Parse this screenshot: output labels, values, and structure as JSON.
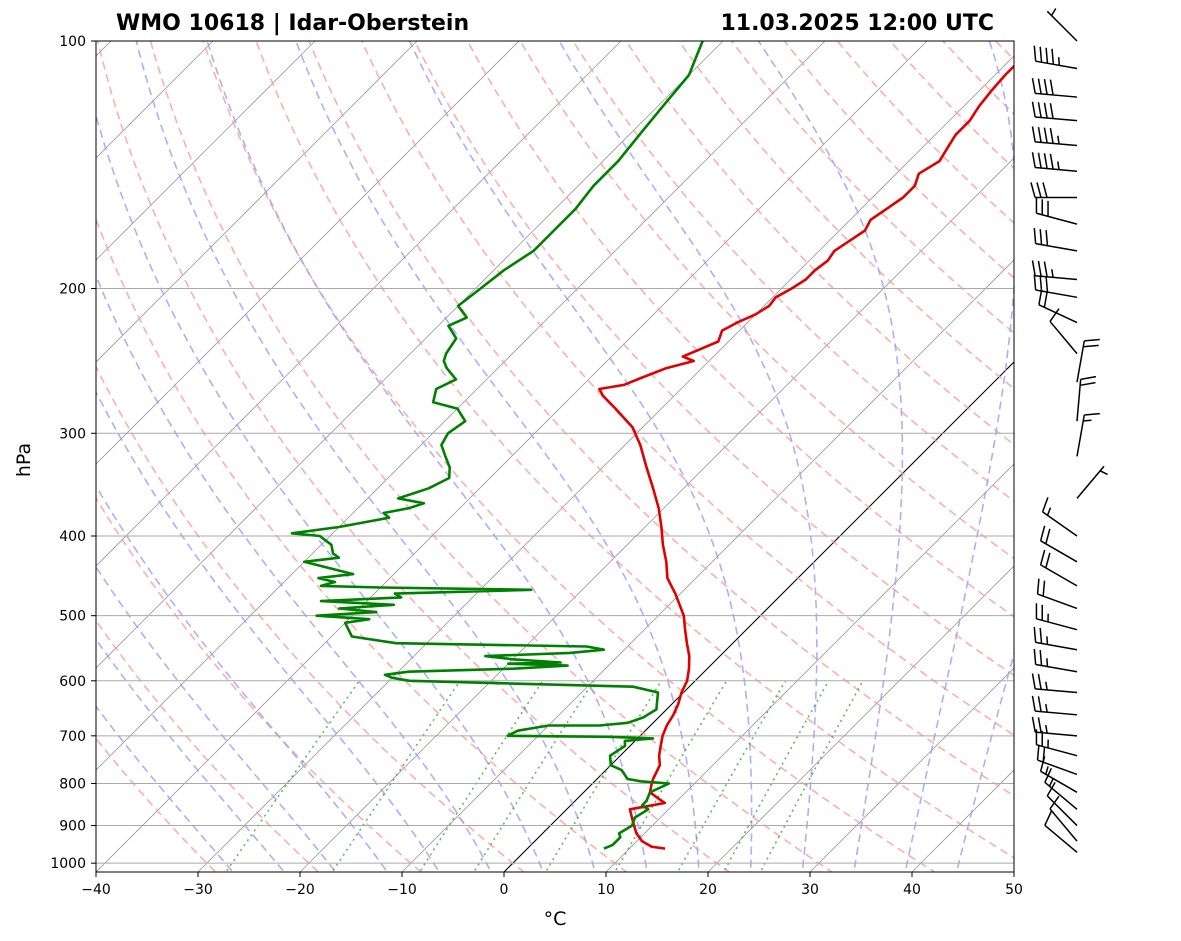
{
  "chart_data": {
    "type": "line",
    "title_left": "WMO 10618 | Idar-Oberstein",
    "title_right": "11.03.2025 12:00 UTC",
    "xlabel": "°C",
    "ylabel": "hPa",
    "xlim": [
      -40,
      50
    ],
    "ylim": [
      1025,
      100
    ],
    "log_pressure_axis": true,
    "skew_degrees": 45,
    "grid": true,
    "x_ticks": [
      "−40",
      "−30",
      "−20",
      "−10",
      "0",
      "10",
      "20",
      "30",
      "40",
      "50"
    ],
    "y_ticks": [
      "100",
      "200",
      "300",
      "400",
      "500",
      "600",
      "700",
      "800",
      "900",
      "1000"
    ],
    "background_lines": {
      "dry_adiabats": "red-dashed",
      "moist_adiabats": "blue-dashed",
      "mixing_ratio": "green-dotted",
      "isotherms": "gray-solid",
      "zero_isotherm": "black-solid"
    },
    "series": [
      {
        "color": "#e00000",
        "points": [
          [
            13.5,
            960
          ],
          [
            12.0,
            955
          ],
          [
            10.5,
            940
          ],
          [
            9.2,
            920
          ],
          [
            8.2,
            900
          ],
          [
            7.2,
            880
          ],
          [
            6.2,
            860
          ],
          [
            9.0,
            845
          ],
          [
            8.0,
            835
          ],
          [
            6.5,
            820
          ],
          [
            5.8,
            800
          ],
          [
            5.5,
            790
          ],
          [
            4.8,
            760
          ],
          [
            3.8,
            740
          ],
          [
            3.0,
            720
          ],
          [
            2.2,
            700
          ],
          [
            1.6,
            680
          ],
          [
            1.2,
            660
          ],
          [
            0.6,
            640
          ],
          [
            -0.2,
            620
          ],
          [
            -0.8,
            600
          ],
          [
            -1.8,
            580
          ],
          [
            -3.0,
            560
          ],
          [
            -4.5,
            540
          ],
          [
            -6.0,
            520
          ],
          [
            -7.5,
            500
          ],
          [
            -10.5,
            470
          ],
          [
            -12.8,
            450
          ],
          [
            -14.5,
            430
          ],
          [
            -16.5,
            410
          ],
          [
            -18.4,
            390
          ],
          [
            -20.5,
            370
          ],
          [
            -23.0,
            350
          ],
          [
            -25.7,
            330
          ],
          [
            -28.5,
            310
          ],
          [
            -31.0,
            295
          ],
          [
            -34.5,
            280
          ],
          [
            -37.0,
            270
          ],
          [
            -38.0,
            265
          ],
          [
            -36.0,
            262
          ],
          [
            -35.0,
            257
          ],
          [
            -33.5,
            250
          ],
          [
            -31.5,
            245
          ],
          [
            -33.0,
            242
          ],
          [
            -32.0,
            237
          ],
          [
            -31.0,
            232
          ],
          [
            -31.7,
            225
          ],
          [
            -31.0,
            220
          ],
          [
            -30.0,
            215
          ],
          [
            -29.5,
            210
          ],
          [
            -29.7,
            205
          ],
          [
            -29.0,
            200
          ],
          [
            -28.5,
            195
          ],
          [
            -28.5,
            190
          ],
          [
            -28.2,
            185
          ],
          [
            -28.5,
            180
          ],
          [
            -28.0,
            175
          ],
          [
            -27.5,
            170
          ],
          [
            -28.0,
            165
          ],
          [
            -27.5,
            160
          ],
          [
            -27.0,
            155
          ],
          [
            -27.0,
            150
          ],
          [
            -27.8,
            145
          ],
          [
            -27.0,
            140
          ],
          [
            -27.5,
            135
          ],
          [
            -28.0,
            130
          ],
          [
            -28.0,
            125
          ],
          [
            -28.5,
            120
          ],
          [
            -28.8,
            115
          ],
          [
            -29.0,
            110
          ],
          [
            -29.0,
            105
          ],
          [
            -29.0,
            100
          ]
        ]
      },
      {
        "color": "#008000",
        "points": [
          [
            7.5,
            960
          ],
          [
            8.0,
            950
          ],
          [
            8.0,
            930
          ],
          [
            7.5,
            920
          ],
          [
            8.0,
            900
          ],
          [
            7.5,
            880
          ],
          [
            8.0,
            860
          ],
          [
            7.0,
            850
          ],
          [
            7.0,
            840
          ],
          [
            6.5,
            820
          ],
          [
            7.5,
            800
          ],
          [
            4.5,
            795
          ],
          [
            3.0,
            790
          ],
          [
            1.5,
            770
          ],
          [
            0.0,
            760
          ],
          [
            -1.0,
            740
          ],
          [
            -0.5,
            720
          ],
          [
            -1.0,
            710
          ],
          [
            1.5,
            705
          ],
          [
            -3.0,
            702
          ],
          [
            -13.0,
            700
          ],
          [
            -12.5,
            690
          ],
          [
            -10.0,
            680
          ],
          [
            -5.0,
            680
          ],
          [
            -2.5,
            675
          ],
          [
            -1.5,
            665
          ],
          [
            -1.0,
            650
          ],
          [
            -1.5,
            640
          ],
          [
            -2.5,
            620
          ],
          [
            -5.5,
            610
          ],
          [
            -28.0,
            600
          ],
          [
            -30.0,
            595
          ],
          [
            -31.0,
            590
          ],
          [
            -29.0,
            585
          ],
          [
            -19.0,
            580
          ],
          [
            -14.0,
            575
          ],
          [
            -20.0,
            572
          ],
          [
            -15.0,
            570
          ],
          [
            -20.0,
            565
          ],
          [
            -23.0,
            560
          ],
          [
            -15.0,
            555
          ],
          [
            -12.0,
            550
          ],
          [
            -14.0,
            545
          ],
          [
            -33.0,
            540
          ],
          [
            -38.0,
            530
          ],
          [
            -39.0,
            520
          ],
          [
            -40.0,
            510
          ],
          [
            -38.0,
            505
          ],
          [
            -43.5,
            500
          ],
          [
            -38.0,
            495
          ],
          [
            -42.0,
            490
          ],
          [
            -37.0,
            485
          ],
          [
            -44.5,
            480
          ],
          [
            -37.0,
            475
          ],
          [
            -38.0,
            470
          ],
          [
            -25.0,
            465
          ],
          [
            -40.0,
            462
          ],
          [
            -46.0,
            460
          ],
          [
            -45.0,
            455
          ],
          [
            -47.0,
            450
          ],
          [
            -44.0,
            445
          ],
          [
            -46.0,
            440
          ],
          [
            -50.0,
            430
          ],
          [
            -47.0,
            425
          ],
          [
            -48.0,
            420
          ],
          [
            -49.0,
            410
          ],
          [
            -51.0,
            400
          ],
          [
            -54.0,
            397
          ],
          [
            -50.0,
            390
          ],
          [
            -48.0,
            385
          ],
          [
            -46.0,
            380
          ],
          [
            -47.0,
            375
          ],
          [
            -45.0,
            370
          ],
          [
            -44.0,
            365
          ],
          [
            -47.0,
            360
          ],
          [
            -45.0,
            350
          ],
          [
            -44.0,
            340
          ],
          [
            -45.0,
            330
          ],
          [
            -46.5,
            320
          ],
          [
            -48.0,
            310
          ],
          [
            -48.5,
            300
          ],
          [
            -48.0,
            290
          ],
          [
            -50.0,
            280
          ],
          [
            -53.0,
            275
          ],
          [
            -54.0,
            265
          ],
          [
            -53.0,
            258
          ],
          [
            -55.0,
            250
          ],
          [
            -56.0,
            245
          ],
          [
            -56.5,
            240
          ],
          [
            -57.0,
            230
          ],
          [
            -59.0,
            222
          ],
          [
            -58.0,
            217
          ],
          [
            -60.0,
            210
          ],
          [
            -59.5,
            200
          ],
          [
            -59.0,
            190
          ],
          [
            -58.0,
            180
          ],
          [
            -58.0,
            170
          ],
          [
            -58.0,
            160
          ],
          [
            -58.5,
            150
          ],
          [
            -58.5,
            140
          ],
          [
            -59.0,
            130
          ],
          [
            -59.5,
            120
          ],
          [
            -60.0,
            110
          ],
          [
            -62.0,
            100
          ]
        ]
      }
    ],
    "wind_barbs": [
      {
        "p": 100,
        "dir": 315,
        "kt": 5
      },
      {
        "p": 108,
        "dir": 280,
        "kt": 45
      },
      {
        "p": 117,
        "dir": 275,
        "kt": 40
      },
      {
        "p": 125,
        "dir": 275,
        "kt": 40
      },
      {
        "p": 134,
        "dir": 275,
        "kt": 45
      },
      {
        "p": 144,
        "dir": 275,
        "kt": 45
      },
      {
        "p": 155,
        "dir": 270,
        "kt": 30
      },
      {
        "p": 167,
        "dir": 285,
        "kt": 30
      },
      {
        "p": 180,
        "dir": 280,
        "kt": 30
      },
      {
        "p": 195,
        "dir": 275,
        "kt": 35
      },
      {
        "p": 205,
        "dir": 280,
        "kt": 30
      },
      {
        "p": 220,
        "dir": 295,
        "kt": 20
      },
      {
        "p": 240,
        "dir": 320,
        "kt": 10
      },
      {
        "p": 260,
        "dir": 10,
        "kt": 20
      },
      {
        "p": 290,
        "dir": 5,
        "kt": 20
      },
      {
        "p": 320,
        "dir": 10,
        "kt": 15
      },
      {
        "p": 360,
        "dir": 40,
        "kt": 5
      },
      {
        "p": 400,
        "dir": 305,
        "kt": 15
      },
      {
        "p": 430,
        "dir": 300,
        "kt": 20
      },
      {
        "p": 460,
        "dir": 300,
        "kt": 20
      },
      {
        "p": 490,
        "dir": 290,
        "kt": 20
      },
      {
        "p": 520,
        "dir": 285,
        "kt": 25
      },
      {
        "p": 550,
        "dir": 280,
        "kt": 25
      },
      {
        "p": 585,
        "dir": 280,
        "kt": 25
      },
      {
        "p": 620,
        "dir": 275,
        "kt": 25
      },
      {
        "p": 660,
        "dir": 275,
        "kt": 25
      },
      {
        "p": 700,
        "dir": 275,
        "kt": 25
      },
      {
        "p": 740,
        "dir": 285,
        "kt": 25
      },
      {
        "p": 780,
        "dir": 290,
        "kt": 20
      },
      {
        "p": 820,
        "dir": 300,
        "kt": 15
      },
      {
        "p": 860,
        "dir": 310,
        "kt": 15
      },
      {
        "p": 900,
        "dir": 315,
        "kt": 10
      },
      {
        "p": 940,
        "dir": 320,
        "kt": 10
      },
      {
        "p": 970,
        "dir": 310,
        "kt": 10
      }
    ]
  }
}
